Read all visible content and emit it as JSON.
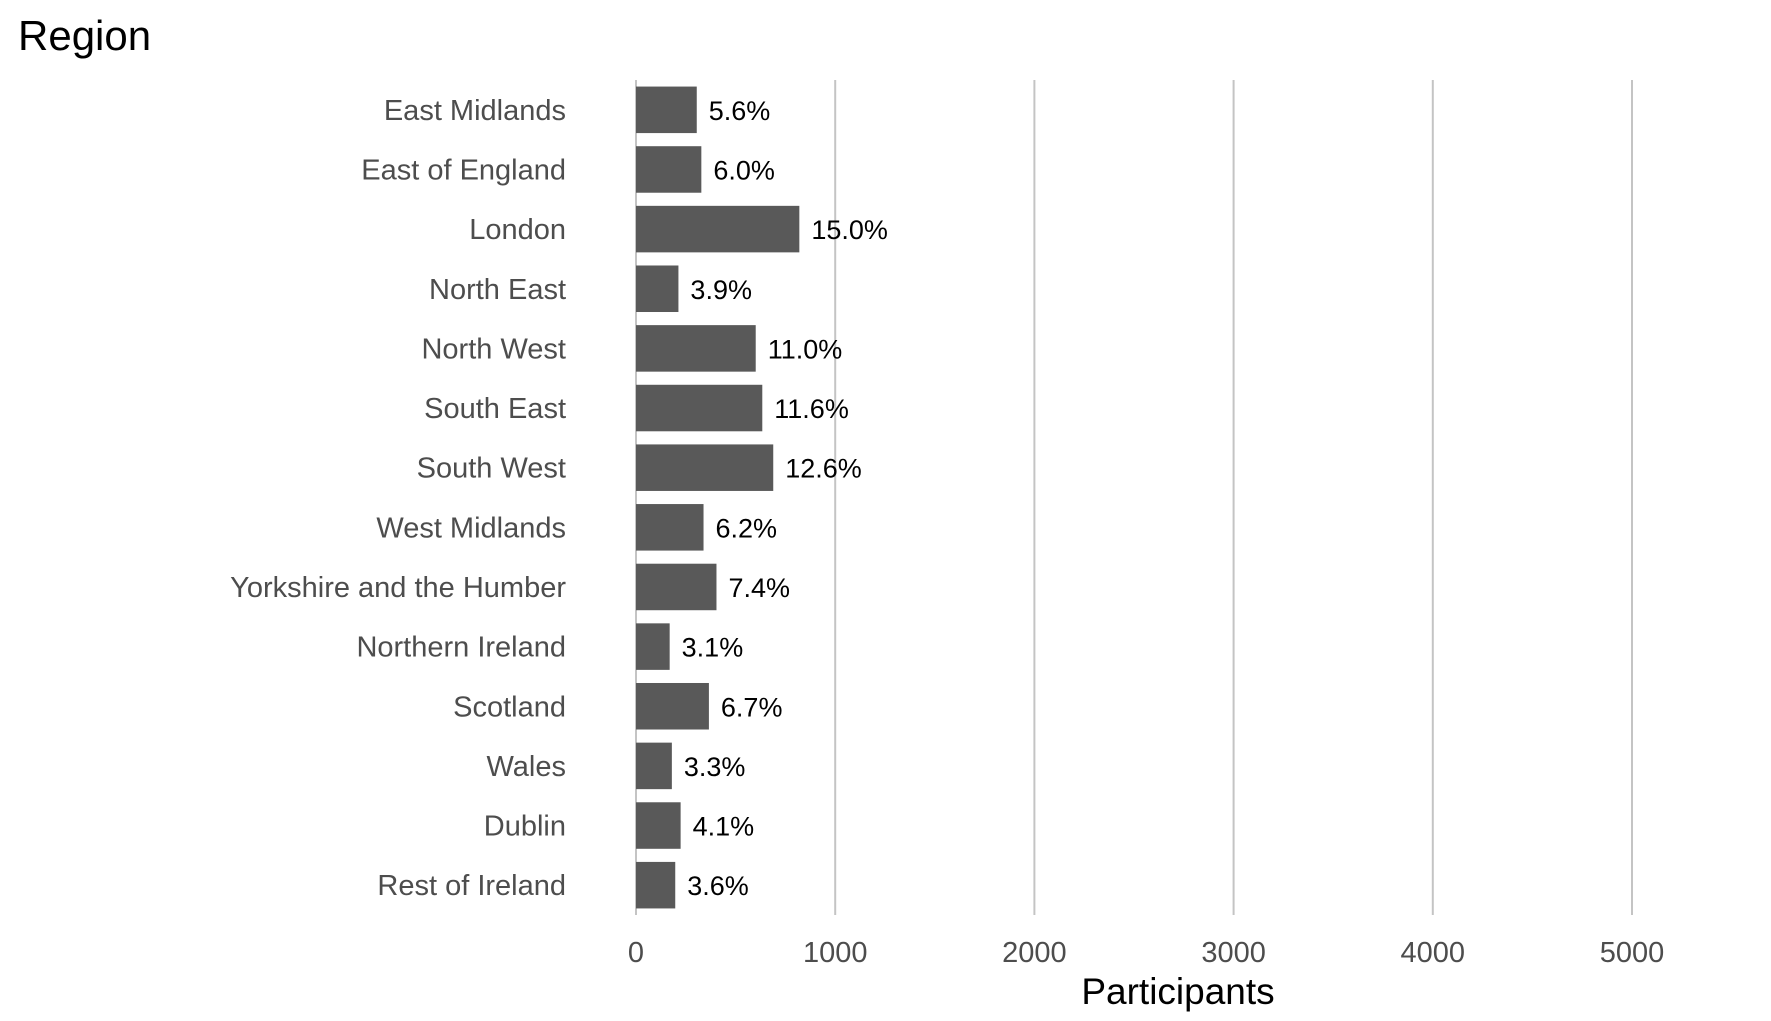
{
  "chart_data": {
    "type": "bar",
    "orientation": "horizontal",
    "title": "Region",
    "xlabel": "Participants",
    "ylabel": "",
    "xlim": [
      0,
      5000
    ],
    "x_ticks": [
      0,
      1000,
      2000,
      3000,
      4000,
      5000
    ],
    "grid": "vertical major lines",
    "legend": "none",
    "categories": [
      "East Midlands",
      "East of England",
      "London",
      "North East",
      "North West",
      "South East",
      "South West",
      "West Midlands",
      "Yorkshire and the Humber",
      "Northern Ireland",
      "Scotland",
      "Wales",
      "Dublin",
      "Rest of Ireland"
    ],
    "values": [
      305,
      328,
      820,
      213,
      601,
      634,
      689,
      339,
      404,
      169,
      366,
      180,
      224,
      197
    ],
    "labels": [
      "5.6%",
      "6.0%",
      "15.0%",
      "3.9%",
      "11.0%",
      "11.6%",
      "12.6%",
      "6.2%",
      "7.4%",
      "3.1%",
      "6.7%",
      "3.3%",
      "4.1%",
      "3.6%"
    ],
    "colors": {
      "bar": "#595959",
      "grid": "#c4c4c4",
      "category_text": "#4d4d4d",
      "label_text": "#000000"
    }
  }
}
